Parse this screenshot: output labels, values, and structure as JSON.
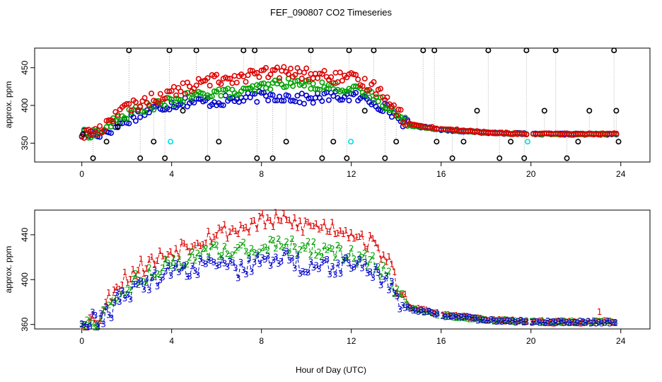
{
  "title": "FEF_090807  CO2 Timeseries",
  "xlabel": "Hour of Day (UTC)",
  "colors": {
    "s1": "#dd0000",
    "s2": "#00a000",
    "s3": "#0000cc",
    "raw": "#000000",
    "flag": "#00dddd",
    "drop": "#aaaaaa"
  },
  "chart_data": [
    {
      "type": "scatter",
      "title": "",
      "ylabel": "approx. ppm",
      "xlim": [
        -2.1,
        25.3
      ],
      "ylim": [
        325,
        476
      ],
      "xticks": [
        0,
        4,
        8,
        12,
        16,
        20,
        24
      ],
      "yticks": [
        350,
        400,
        450
      ],
      "grid": false,
      "series": [
        {
          "key": "raw",
          "x": [
            0.05,
            0.5,
            1.1,
            1.6,
            2.1,
            2.6,
            3.2,
            3.7,
            3.9,
            4.5,
            5.1,
            5.6,
            6.1,
            7.2,
            7.7,
            7.8,
            8.5,
            9.1,
            10.2,
            10.7,
            11.2,
            11.8,
            11.9,
            12.6,
            13.0,
            13.5,
            14.0,
            15.2,
            15.7,
            15.8,
            16.5,
            17.0,
            17.6,
            18.1,
            18.6,
            19.1,
            19.7,
            19.8,
            20.6,
            21.1,
            21.6,
            22.1,
            22.6,
            23.7,
            23.8,
            23.9
          ],
          "y": [
            362,
            330,
            352,
            372,
            473,
            330,
            352,
            330,
            473,
            393,
            473,
            330,
            352,
            473,
            473,
            330,
            330,
            352,
            473,
            330,
            352,
            330,
            473,
            393,
            473,
            330,
            352,
            473,
            473,
            352,
            330,
            352,
            393,
            473,
            330,
            352,
            330,
            473,
            393,
            473,
            330,
            352,
            393,
            473,
            393,
            352
          ]
        },
        {
          "key": "flag",
          "x": [
            3.95,
            11.98,
            19.85
          ],
          "y": [
            352,
            352,
            352
          ]
        }
      ],
      "curves": [
        {
          "key": "s1",
          "knots": [
            [
              0,
              362
            ],
            [
              0.8,
              366
            ],
            [
              1.5,
              390
            ],
            [
              2.5,
              402
            ],
            [
              3.5,
              412
            ],
            [
              4.5,
              422
            ],
            [
              6,
              435
            ],
            [
              7,
              438
            ],
            [
              8,
              442
            ],
            [
              9,
              444
            ],
            [
              10,
              442
            ],
            [
              11,
              438
            ],
            [
              12,
              435
            ],
            [
              13,
              425
            ],
            [
              13.6,
              412
            ],
            [
              14.1,
              390
            ],
            [
              14.6,
              375
            ],
            [
              15.3,
              372
            ],
            [
              16,
              369
            ],
            [
              18,
              364
            ],
            [
              20,
              362
            ],
            [
              24,
              362
            ]
          ],
          "noise": 8,
          "step": 0.1
        },
        {
          "key": "s2",
          "knots": [
            [
              0,
              362
            ],
            [
              0.8,
              364
            ],
            [
              1.5,
              380
            ],
            [
              2.5,
              395
            ],
            [
              3.5,
              402
            ],
            [
              4.5,
              410
            ],
            [
              6,
              418
            ],
            [
              7,
              416
            ],
            [
              8,
              425
            ],
            [
              9,
              430
            ],
            [
              10,
              428
            ],
            [
              11,
              425
            ],
            [
              12,
              422
            ],
            [
              13,
              412
            ],
            [
              13.6,
              400
            ],
            [
              14.1,
              385
            ],
            [
              14.6,
              374
            ],
            [
              15.3,
              371
            ],
            [
              16,
              368
            ],
            [
              18,
              364
            ],
            [
              20,
              362
            ],
            [
              24,
              362
            ]
          ],
          "noise": 6,
          "step": 0.1
        },
        {
          "key": "s3",
          "knots": [
            [
              0,
              362
            ],
            [
              0.8,
              363
            ],
            [
              1.5,
              372
            ],
            [
              2.5,
              388
            ],
            [
              3.5,
              398
            ],
            [
              4.5,
              405
            ],
            [
              6,
              405
            ],
            [
              7,
              408
            ],
            [
              8,
              412
            ],
            [
              9,
              412
            ],
            [
              10,
              408
            ],
            [
              11,
              412
            ],
            [
              12,
              412
            ],
            [
              13,
              405
            ],
            [
              13.6,
              395
            ],
            [
              14.1,
              383
            ],
            [
              14.6,
              373
            ],
            [
              15.3,
              371
            ],
            [
              16,
              368
            ],
            [
              18,
              364
            ],
            [
              20,
              362
            ],
            [
              24,
              362
            ]
          ],
          "noise": 7,
          "step": 0.1
        }
      ]
    },
    {
      "type": "scatter",
      "title": "",
      "ylabel": "approx. ppm",
      "xlim": [
        -2.1,
        25.3
      ],
      "ylim": [
        356,
        462
      ],
      "xticks": [
        0,
        4,
        8,
        12,
        16,
        20,
        24
      ],
      "yticks": [
        360,
        400,
        440
      ],
      "grid": false,
      "point_labels": [
        "1",
        "2",
        "3"
      ],
      "series": [
        {
          "key": "s1",
          "label": "1",
          "x": [
            23.05
          ],
          "y": [
            371
          ]
        }
      ],
      "curves": [
        {
          "key": "s1",
          "label": "1",
          "knots": [
            [
              0,
              362
            ],
            [
              0.8,
              366
            ],
            [
              1.5,
              395
            ],
            [
              2.5,
              410
            ],
            [
              3.5,
              420
            ],
            [
              4.5,
              430
            ],
            [
              6,
              442
            ],
            [
              7,
              445
            ],
            [
              8,
              452
            ],
            [
              9,
              452
            ],
            [
              10,
              448
            ],
            [
              11,
              447
            ],
            [
              12,
              443
            ],
            [
              13,
              430
            ],
            [
              13.6,
              420
            ],
            [
              14.1,
              390
            ],
            [
              14.6,
              376
            ],
            [
              15.3,
              372
            ],
            [
              16,
              369
            ],
            [
              18,
              364
            ],
            [
              20,
              362
            ],
            [
              24,
              362
            ]
          ],
          "noise": 8,
          "step": 0.12
        },
        {
          "key": "s2",
          "label": "2",
          "knots": [
            [
              0,
              362
            ],
            [
              0.8,
              364
            ],
            [
              1.5,
              385
            ],
            [
              2.5,
              400
            ],
            [
              3.5,
              410
            ],
            [
              4.5,
              416
            ],
            [
              6,
              425
            ],
            [
              7,
              426
            ],
            [
              8,
              430
            ],
            [
              9,
              430
            ],
            [
              10,
              428
            ],
            [
              11,
              426
            ],
            [
              12,
              422
            ],
            [
              13,
              414
            ],
            [
              13.6,
              404
            ],
            [
              14.1,
              385
            ],
            [
              14.6,
              374
            ],
            [
              15.3,
              371
            ],
            [
              16,
              368
            ],
            [
              18,
              364
            ],
            [
              20,
              362
            ],
            [
              24,
              362
            ]
          ],
          "noise": 7,
          "step": 0.12
        },
        {
          "key": "s3",
          "label": "3",
          "knots": [
            [
              0,
              362
            ],
            [
              0.8,
              363
            ],
            [
              1.5,
              378
            ],
            [
              2.5,
              392
            ],
            [
              3.5,
              402
            ],
            [
              4.5,
              408
            ],
            [
              6,
              412
            ],
            [
              7,
              407
            ],
            [
              8,
              415
            ],
            [
              9,
              418
            ],
            [
              10,
              412
            ],
            [
              11,
              412
            ],
            [
              12,
              412
            ],
            [
              13,
              408
            ],
            [
              13.6,
              400
            ],
            [
              14.1,
              383
            ],
            [
              14.6,
              373
            ],
            [
              15.3,
              371
            ],
            [
              16,
              368
            ],
            [
              18,
              364
            ],
            [
              20,
              362
            ],
            [
              24,
              362
            ]
          ],
          "noise": 9,
          "step": 0.12
        }
      ]
    }
  ]
}
